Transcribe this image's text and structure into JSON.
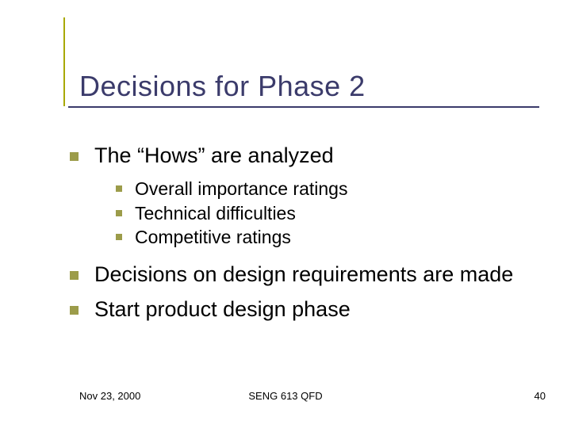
{
  "colors": {
    "title_text": "#3b3b6b",
    "title_rule": "#3b3b6b",
    "accent_vertical": "#a8a800",
    "bullet": "#9c9c4a",
    "body_text": "#000000",
    "background": "#ffffff"
  },
  "fonts": {
    "title_size_pt": 36,
    "lvl1_size_pt": 27,
    "lvl2_size_pt": 23,
    "footer_size_pt": 13,
    "family": "Verdana"
  },
  "title": "Decisions for Phase 2",
  "bullets": {
    "items": [
      {
        "level": 1,
        "text": "The “Hows” are analyzed"
      },
      {
        "level": 2,
        "text": "Overall importance ratings"
      },
      {
        "level": 2,
        "text": "Technical difficulties"
      },
      {
        "level": 2,
        "text": "Competitive ratings"
      },
      {
        "level": 1,
        "text": "Decisions on design requirements are made"
      },
      {
        "level": 1,
        "text": "Start product design phase"
      }
    ]
  },
  "footer": {
    "date": "Nov 23, 2000",
    "center": "SENG 613 QFD",
    "page": "40"
  }
}
